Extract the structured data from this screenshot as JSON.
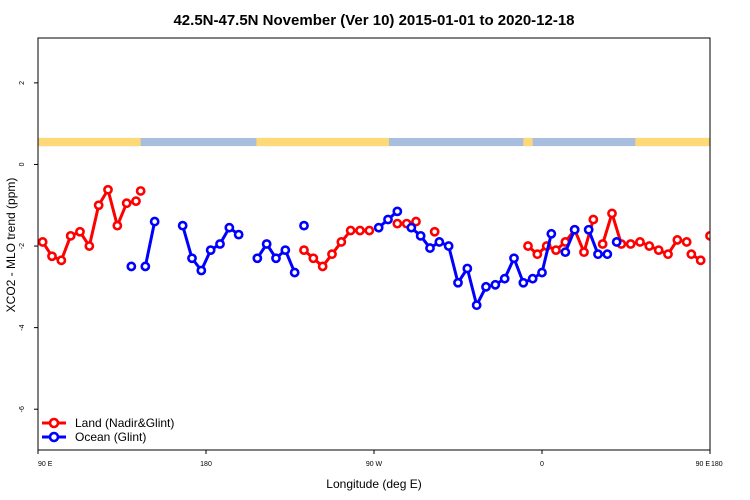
{
  "chart_data": {
    "type": "line",
    "title": "42.5N-47.5N November (Ver 10)   2015-01-01 to 2020-12-18",
    "xlabel": "Longitude (deg E)",
    "ylabel": "XCO2 - MLO trend (ppm)",
    "xlim": [
      90,
      450
    ],
    "ylim": [
      -7,
      3.1
    ],
    "x_ticks": [
      {
        "value": 90,
        "label": "90 E"
      },
      {
        "value": 180,
        "label": "180"
      },
      {
        "value": 270,
        "label": "90 W"
      },
      {
        "value": 360,
        "label": "0"
      },
      {
        "value": 450,
        "label": "90 E"
      }
    ],
    "x_ticks_right": [
      {
        "value": 450,
        "label": "180"
      }
    ],
    "y_ticks": [
      {
        "value": -6,
        "label": "-6"
      },
      {
        "value": -4,
        "label": "-4"
      },
      {
        "value": -2,
        "label": "-2"
      },
      {
        "value": 0,
        "label": "0"
      },
      {
        "value": 2,
        "label": "2"
      }
    ],
    "land_mask_band": {
      "y_range": [
        0.45,
        0.65
      ],
      "land_color": "#FDD977",
      "ocean_color": "#A7BEDC",
      "land_segments": [
        [
          90,
          145
        ],
        [
          207,
          278
        ],
        [
          350,
          355
        ],
        [
          410,
          450
        ]
      ]
    },
    "legend": {
      "position": "bottom-left",
      "entries": [
        {
          "label": "Land (Nadir&Glint)",
          "color": "#FF0000"
        },
        {
          "label": "Ocean (Glint)",
          "color": "#0000FF"
        }
      ]
    },
    "series": [
      {
        "name": "Land (Nadir&Glint)",
        "color": "#FF0000",
        "segments": [
          {
            "x": [
              92.5,
              97.5,
              102.5,
              107.5,
              112.5,
              117.5,
              122.5,
              127.5,
              132.5,
              137.5,
              142.5
            ],
            "y": [
              -1.9,
              -2.25,
              -2.35,
              -1.75,
              -1.65,
              -2.0,
              -1.0,
              -0.62,
              -1.5,
              -0.95,
              -0.9
            ]
          },
          {
            "x": [
              145
            ],
            "y": [
              -0.65
            ]
          },
          {
            "x": [
              232.5,
              237.5,
              242.5,
              247.5,
              252.5,
              257.5,
              262.5,
              267.5
            ],
            "y": [
              -2.1,
              -2.3,
              -2.5,
              -2.2,
              -1.9,
              -1.62,
              -1.62,
              -1.62
            ]
          },
          {
            "x": [
              282.5,
              287.5,
              292.5
            ],
            "y": [
              -1.45,
              -1.45,
              -1.4
            ]
          },
          {
            "x": [
              302.5
            ],
            "y": [
              -1.65
            ]
          },
          {
            "x": [
              352.5,
              357.5,
              362.5,
              367.5,
              372.5,
              377.5,
              382.5,
              387.5
            ],
            "y": [
              -2.0,
              -2.2,
              -2.0,
              -2.1,
              -1.9,
              -1.6,
              -2.15,
              -1.35
            ]
          },
          {
            "x": [
              392.5,
              397.5,
              402.5,
              407.5,
              412.5,
              417.5,
              422.5,
              427.5,
              432.5,
              437.5
            ],
            "y": [
              -1.95,
              -1.2,
              -1.95,
              -1.95,
              -1.9,
              -2.0,
              -2.1,
              -2.2,
              -1.85,
              -1.9
            ]
          },
          {
            "x": [
              440,
              445
            ],
            "y": [
              -2.2,
              -2.35
            ]
          },
          {
            "x": [
              450,
              455,
              460,
              465,
              470,
              475,
              480,
              485
            ],
            "y": [
              -1.75,
              -1.65,
              -2.0,
              -1.0,
              -0.62,
              -1.5,
              -0.95,
              -0.9
            ]
          },
          {
            "x": [
              488
            ],
            "y": [
              -0.65
            ]
          }
        ]
      },
      {
        "name": "Ocean (Glint)",
        "color": "#0000FF",
        "segments": [
          {
            "x": [
              140
            ],
            "y": [
              -2.5
            ]
          },
          {
            "x": [
              147.5,
              152.5
            ],
            "y": [
              -2.5,
              -1.4
            ]
          },
          {
            "x": [
              167.5,
              172.5,
              177.5,
              182.5,
              187.5,
              192.5,
              197.5
            ],
            "y": [
              -1.5,
              -2.3,
              -2.6,
              -2.1,
              -1.95,
              -1.55,
              -1.72
            ]
          },
          {
            "x": [
              207.5,
              212.5,
              217.5,
              222.5,
              227.5
            ],
            "y": [
              -2.3,
              -1.95,
              -2.3,
              -2.1,
              -2.65
            ]
          },
          {
            "x": [
              232.5
            ],
            "y": [
              -1.5
            ]
          },
          {
            "x": [
              272.5,
              277.5,
              282.5
            ],
            "y": [
              -1.55,
              -1.35,
              -1.15
            ]
          },
          {
            "x": [
              290,
              295,
              300,
              305,
              310,
              315,
              320,
              325,
              330,
              335,
              340,
              345,
              350,
              355,
              360,
              365
            ],
            "y": [
              -1.55,
              -1.75,
              -2.05,
              -1.9,
              -2.0,
              -2.9,
              -2.55,
              -3.45,
              -3.0,
              -2.95,
              -2.8,
              -2.3,
              -2.9,
              -2.8,
              -2.65,
              -1.7
            ]
          },
          {
            "x": [
              372.5,
              377.5
            ],
            "y": [
              -2.15,
              -1.6
            ]
          },
          {
            "x": [
              385,
              390,
              395
            ],
            "y": [
              -1.6,
              -2.2,
              -2.2
            ]
          },
          {
            "x": [
              400
            ],
            "y": [
              -1.9
            ]
          },
          {
            "x": [
              458,
              463,
              468
            ],
            "y": [
              -2.5,
              -2.5,
              -1.4
            ]
          },
          {
            "x": [
              480,
              485,
              490
            ],
            "y": [
              -1.5,
              -2.3,
              -2.6
            ]
          }
        ]
      }
    ]
  }
}
